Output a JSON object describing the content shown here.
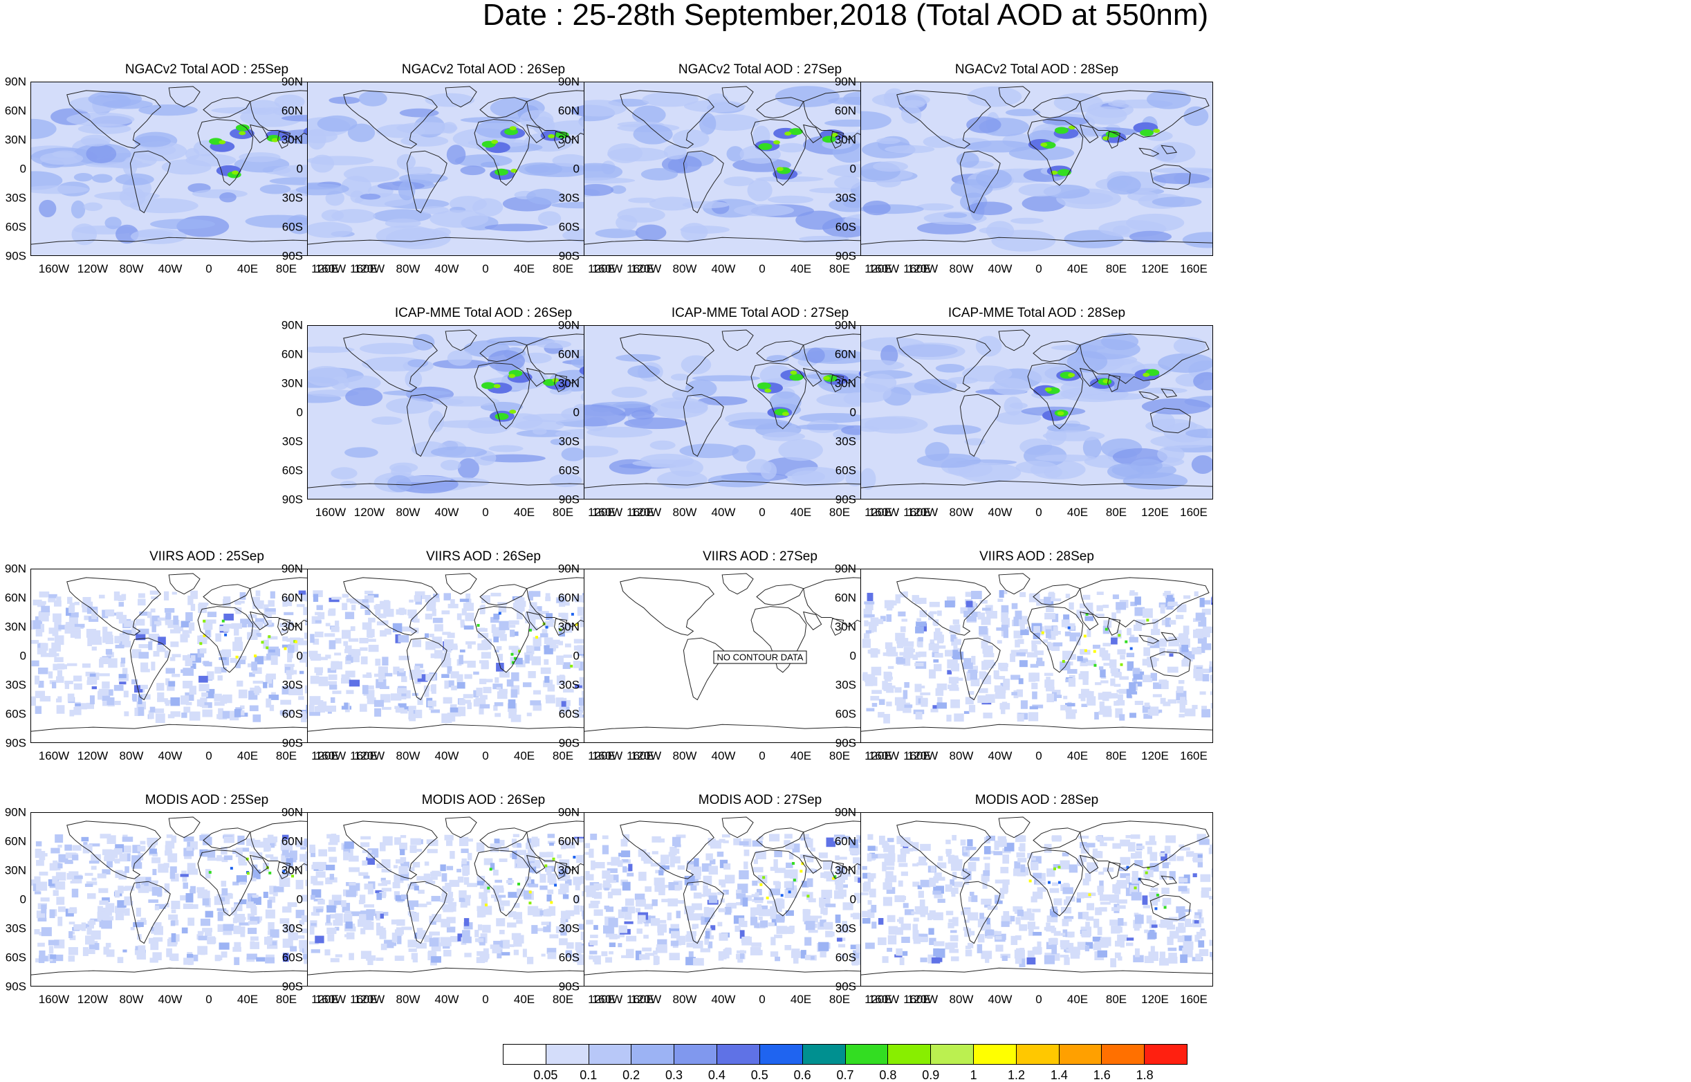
{
  "figure": {
    "title": "Date : 25-28th September,2018 (Total AOD at 550nm)"
  },
  "lat_labels": [
    "90N",
    "60N",
    "30N",
    "0",
    "30S",
    "60S",
    "90S"
  ],
  "lon_labels": [
    "160W",
    "120W",
    "80W",
    "40W",
    "0",
    "40E",
    "80E",
    "120E",
    "160E"
  ],
  "panels": [
    {
      "title": "NGACv2 Total AOD : 25Sep",
      "type": "model",
      "row": 0,
      "col": 0
    },
    {
      "title": "NGACv2 Total AOD : 26Sep",
      "type": "model",
      "row": 0,
      "col": 1
    },
    {
      "title": "NGACv2 Total AOD : 27Sep",
      "type": "model",
      "row": 0,
      "col": 2
    },
    {
      "title": "NGACv2 Total AOD : 28Sep",
      "type": "model",
      "row": 0,
      "col": 3
    },
    {
      "title": "ICAP-MME Total AOD : 26Sep",
      "type": "model",
      "row": 1,
      "col": 1
    },
    {
      "title": "ICAP-MME Total AOD : 27Sep",
      "type": "model",
      "row": 1,
      "col": 2
    },
    {
      "title": "ICAP-MME Total AOD : 28Sep",
      "type": "model",
      "row": 1,
      "col": 3
    },
    {
      "title": "VIIRS AOD : 25Sep",
      "type": "sat",
      "row": 2,
      "col": 0
    },
    {
      "title": "VIIRS AOD : 26Sep",
      "type": "sat",
      "row": 2,
      "col": 1
    },
    {
      "title": "VIIRS AOD : 27Sep",
      "type": "empty",
      "row": 2,
      "col": 2,
      "message": "NO CONTOUR DATA"
    },
    {
      "title": "VIIRS AOD : 28Sep",
      "type": "sat",
      "row": 2,
      "col": 3
    },
    {
      "title": "MODIS AOD : 25Sep",
      "type": "sat",
      "row": 3,
      "col": 0
    },
    {
      "title": "MODIS AOD : 26Sep",
      "type": "sat",
      "row": 3,
      "col": 1
    },
    {
      "title": "MODIS AOD : 27Sep",
      "type": "sat",
      "row": 3,
      "col": 2
    },
    {
      "title": "MODIS AOD : 28Sep",
      "type": "sat",
      "row": 3,
      "col": 3
    }
  ],
  "colorbar": {
    "colors": [
      "#ffffff",
      "#d4ddfa",
      "#b8c8f8",
      "#9cb3f4",
      "#8098ee",
      "#5f72e6",
      "#1f64f0",
      "#009090",
      "#33dd22",
      "#88ee00",
      "#bbf050",
      "#ffff00",
      "#ffc800",
      "#ffa000",
      "#ff7000",
      "#ff2010"
    ],
    "labels": [
      "0.05",
      "0.1",
      "0.2",
      "0.3",
      "0.4",
      "0.5",
      "0.6",
      "0.7",
      "0.8",
      "0.9",
      "1",
      "1.2",
      "1.4",
      "1.6",
      "1.8"
    ]
  }
}
